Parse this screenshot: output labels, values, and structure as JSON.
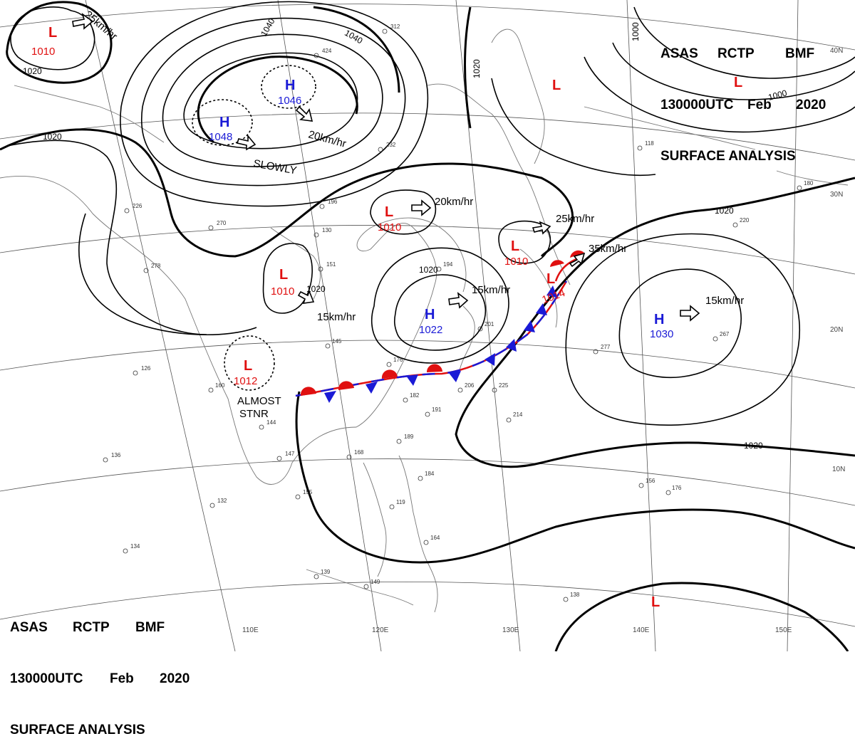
{
  "header": {
    "line1": [
      "ASAS",
      "RCTP",
      "BMF"
    ],
    "line2": [
      "130000UTC",
      "Feb",
      "2020"
    ],
    "line3": "SURFACE ANALYSIS"
  },
  "colors": {
    "high": "#1a1ad6",
    "low": "#e01010",
    "isobar": "#000000",
    "cold_front": "#1a1ad6",
    "warm_front": "#e01010",
    "grid": "#555555",
    "coast": "#777777"
  },
  "pressure_systems": [
    {
      "type": "L",
      "value": "1010"
    },
    {
      "type": "H",
      "value": "1046"
    },
    {
      "type": "H",
      "value": "1048"
    },
    {
      "type": "L",
      "value": ""
    },
    {
      "type": "L",
      "value": ""
    },
    {
      "type": "L",
      "value": "1010"
    },
    {
      "type": "L",
      "value": "1010"
    },
    {
      "type": "L",
      "value": "1010"
    },
    {
      "type": "L",
      "value": "1012"
    },
    {
      "type": "H",
      "value": "1022"
    },
    {
      "type": "L",
      "value": "1014"
    },
    {
      "type": "H",
      "value": "1030"
    },
    {
      "type": "L",
      "value": ""
    }
  ],
  "motions": [
    "25km/hr",
    "20km/hr",
    "SLOWLY",
    "20km/hr",
    "25km/hr",
    "35km/hr",
    "15km/hr",
    "15km/hr",
    "15km/hr",
    "ALMOST",
    "STNR"
  ],
  "isobar_labels": [
    "1020",
    "1040",
    "1040",
    "1020",
    "1020",
    "1020",
    "1000",
    "1000",
    "1020",
    "1020",
    "1020"
  ],
  "latitude_labels": [
    "40N",
    "30N",
    "20N",
    "10N"
  ],
  "longitude_labels": [
    "110E",
    "120E",
    "130E",
    "140E",
    "150E"
  ],
  "station_obs": [
    "312",
    "424",
    "232",
    "130",
    "145",
    "176",
    "206",
    "182",
    "191",
    "189",
    "168",
    "225",
    "214",
    "277",
    "267",
    "156",
    "176",
    "139",
    "149",
    "132",
    "155",
    "147",
    "144",
    "160",
    "126",
    "136",
    "278",
    "226",
    "270",
    "196",
    "151",
    "194",
    "201",
    "118",
    "180",
    "220",
    "138",
    "164",
    "184",
    "119",
    "134"
  ]
}
